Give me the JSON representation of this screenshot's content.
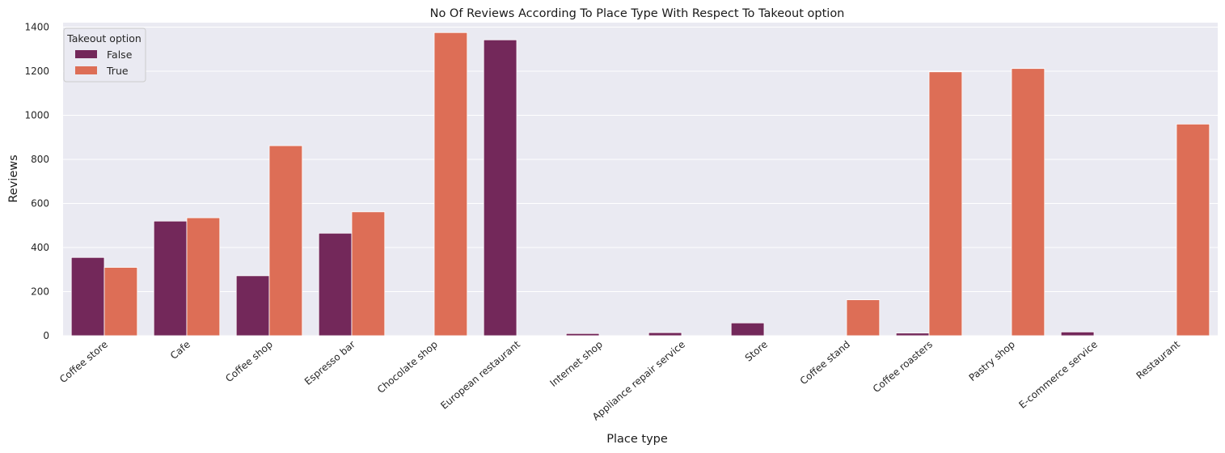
{
  "chart_data": {
    "type": "bar",
    "title": "No Of Reviews According To Place Type With Respect To Takeout option",
    "xlabel": "Place type",
    "ylabel": "Reviews",
    "ylim": [
      0,
      1420
    ],
    "yticks": [
      0,
      200,
      400,
      600,
      800,
      1000,
      1200,
      1400
    ],
    "grid": true,
    "legend": {
      "title": "Takeout option",
      "position": "top-left"
    },
    "categories": [
      "Coffee store",
      "Cafe",
      "Coffee shop",
      "Espresso bar",
      "Chocolate shop",
      "European restaurant",
      "Internet shop",
      "Appliance repair service",
      "Store",
      "Coffee stand",
      "Coffee roasters",
      "Pastry shop",
      "E-commerce service",
      "Restaurant"
    ],
    "series": [
      {
        "name": "False",
        "color": "#73285a",
        "values": [
          355,
          520,
          272,
          465,
          null,
          1342,
          10,
          14,
          58,
          null,
          12,
          null,
          17,
          null
        ]
      },
      {
        "name": "True",
        "color": "#dd6e56",
        "values": [
          310,
          535,
          862,
          562,
          1375,
          null,
          null,
          null,
          null,
          163,
          1197,
          1212,
          null,
          960
        ]
      }
    ]
  }
}
